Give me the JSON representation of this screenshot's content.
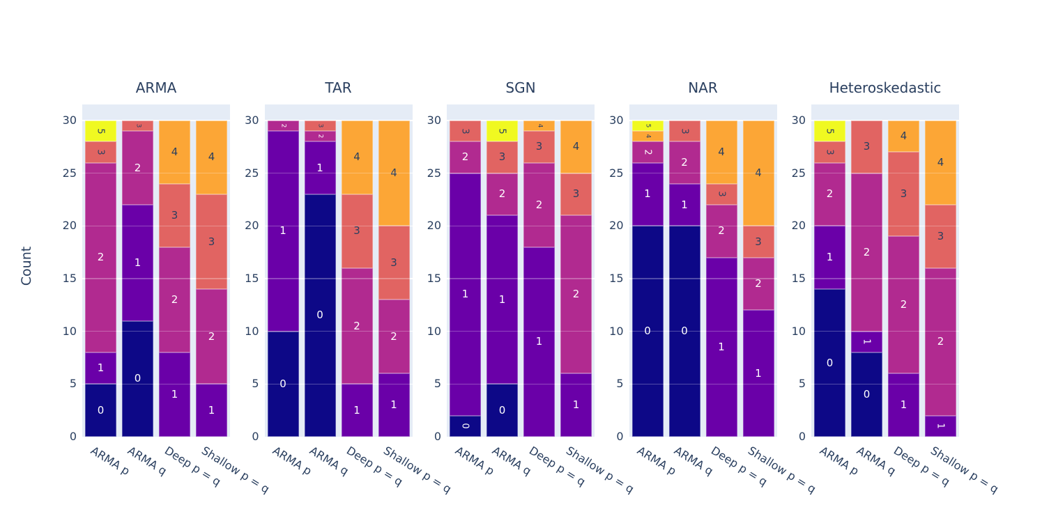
{
  "figure": {
    "background": "#ffffff",
    "plot_background": "#e5ecf6",
    "text_color": "#2a3f5f",
    "gridline_color": "#ffffff"
  },
  "chart_data": {
    "type": "bar",
    "mode": "stacked",
    "ylabel": "Count",
    "categories": [
      "ARMA p",
      "ARMA q",
      "Deep p = q",
      "Shallow p = q"
    ],
    "yticks": [
      0,
      5,
      10,
      15,
      20,
      25,
      30
    ],
    "ylim": [
      0,
      31.5
    ],
    "grid": true,
    "legend_position": "none",
    "segment_colors": {
      "0": "#0d0887",
      "1": "#6a00a8",
      "2": "#b12a90",
      "3": "#e16462",
      "4": "#fca636",
      "5": "#f0f921"
    },
    "segment_label_colors": {
      "0": "#ffffff",
      "1": "#ffffff",
      "2": "#ffffff",
      "3": "#2a3f5f",
      "4": "#2a3f5f",
      "5": "#2a3f5f"
    },
    "subplots": [
      {
        "title": "ARMA",
        "bars": [
          {
            "category": "ARMA p",
            "segments": [
              {
                "order": "0",
                "count": 5
              },
              {
                "order": "1",
                "count": 3
              },
              {
                "order": "2",
                "count": 18
              },
              {
                "order": "3",
                "count": 2
              },
              {
                "order": "5",
                "count": 2
              }
            ]
          },
          {
            "category": "ARMA q",
            "segments": [
              {
                "order": "0",
                "count": 11
              },
              {
                "order": "1",
                "count": 11
              },
              {
                "order": "2",
                "count": 7
              },
              {
                "order": "3",
                "count": 1
              }
            ]
          },
          {
            "category": "Deep p = q",
            "segments": [
              {
                "order": "1",
                "count": 8
              },
              {
                "order": "2",
                "count": 10
              },
              {
                "order": "3",
                "count": 6
              },
              {
                "order": "4",
                "count": 6
              }
            ]
          },
          {
            "category": "Shallow p = q",
            "segments": [
              {
                "order": "1",
                "count": 5
              },
              {
                "order": "2",
                "count": 9
              },
              {
                "order": "3",
                "count": 9
              },
              {
                "order": "4",
                "count": 7
              }
            ]
          }
        ]
      },
      {
        "title": "TAR",
        "bars": [
          {
            "category": "ARMA p",
            "segments": [
              {
                "order": "0",
                "count": 10
              },
              {
                "order": "1",
                "count": 19
              },
              {
                "order": "2",
                "count": 1
              }
            ]
          },
          {
            "category": "ARMA q",
            "segments": [
              {
                "order": "0",
                "count": 23
              },
              {
                "order": "1",
                "count": 5
              },
              {
                "order": "2",
                "count": 1
              },
              {
                "order": "3",
                "count": 1
              }
            ]
          },
          {
            "category": "Deep p = q",
            "segments": [
              {
                "order": "1",
                "count": 5
              },
              {
                "order": "2",
                "count": 11
              },
              {
                "order": "3",
                "count": 7
              },
              {
                "order": "4",
                "count": 7
              }
            ]
          },
          {
            "category": "Shallow p = q",
            "segments": [
              {
                "order": "1",
                "count": 6
              },
              {
                "order": "2",
                "count": 7
              },
              {
                "order": "3",
                "count": 7
              },
              {
                "order": "4",
                "count": 10
              }
            ]
          }
        ]
      },
      {
        "title": "SGN",
        "bars": [
          {
            "category": "ARMA p",
            "segments": [
              {
                "order": "0",
                "count": 2
              },
              {
                "order": "1",
                "count": 23
              },
              {
                "order": "2",
                "count": 3
              },
              {
                "order": "3",
                "count": 2
              }
            ]
          },
          {
            "category": "ARMA q",
            "segments": [
              {
                "order": "0",
                "count": 5
              },
              {
                "order": "1",
                "count": 16
              },
              {
                "order": "2",
                "count": 4
              },
              {
                "order": "3",
                "count": 3
              },
              {
                "order": "5",
                "count": 2
              }
            ]
          },
          {
            "category": "Deep p = q",
            "segments": [
              {
                "order": "1",
                "count": 18
              },
              {
                "order": "2",
                "count": 8
              },
              {
                "order": "3",
                "count": 3
              },
              {
                "order": "4",
                "count": 1
              }
            ]
          },
          {
            "category": "Shallow p = q",
            "segments": [
              {
                "order": "1",
                "count": 6
              },
              {
                "order": "2",
                "count": 15
              },
              {
                "order": "3",
                "count": 4
              },
              {
                "order": "4",
                "count": 5
              }
            ]
          }
        ]
      },
      {
        "title": "NAR",
        "bars": [
          {
            "category": "ARMA p",
            "segments": [
              {
                "order": "0",
                "count": 20
              },
              {
                "order": "1",
                "count": 6
              },
              {
                "order": "2",
                "count": 2
              },
              {
                "order": "4",
                "count": 1
              },
              {
                "order": "5",
                "count": 1
              }
            ]
          },
          {
            "category": "ARMA q",
            "segments": [
              {
                "order": "0",
                "count": 20
              },
              {
                "order": "1",
                "count": 4
              },
              {
                "order": "2",
                "count": 4
              },
              {
                "order": "3",
                "count": 2
              }
            ]
          },
          {
            "category": "Deep p = q",
            "segments": [
              {
                "order": "1",
                "count": 17
              },
              {
                "order": "2",
                "count": 5
              },
              {
                "order": "3",
                "count": 2
              },
              {
                "order": "4",
                "count": 6
              }
            ]
          },
          {
            "category": "Shallow p = q",
            "segments": [
              {
                "order": "1",
                "count": 12
              },
              {
                "order": "2",
                "count": 5
              },
              {
                "order": "3",
                "count": 3
              },
              {
                "order": "4",
                "count": 10
              }
            ]
          }
        ]
      },
      {
        "title": "Heteroskedastic",
        "bars": [
          {
            "category": "ARMA p",
            "segments": [
              {
                "order": "0",
                "count": 14
              },
              {
                "order": "1",
                "count": 6
              },
              {
                "order": "2",
                "count": 6
              },
              {
                "order": "3",
                "count": 2
              },
              {
                "order": "5",
                "count": 2
              }
            ]
          },
          {
            "category": "ARMA q",
            "segments": [
              {
                "order": "0",
                "count": 8
              },
              {
                "order": "1",
                "count": 2
              },
              {
                "order": "2",
                "count": 15
              },
              {
                "order": "3",
                "count": 5
              }
            ]
          },
          {
            "category": "Deep p = q",
            "segments": [
              {
                "order": "1",
                "count": 6
              },
              {
                "order": "2",
                "count": 13
              },
              {
                "order": "3",
                "count": 8
              },
              {
                "order": "4",
                "count": 3
              }
            ]
          },
          {
            "category": "Shallow p = q",
            "segments": [
              {
                "order": "1",
                "count": 2
              },
              {
                "order": "2",
                "count": 14
              },
              {
                "order": "3",
                "count": 6
              },
              {
                "order": "4",
                "count": 8
              }
            ]
          }
        ]
      }
    ]
  }
}
